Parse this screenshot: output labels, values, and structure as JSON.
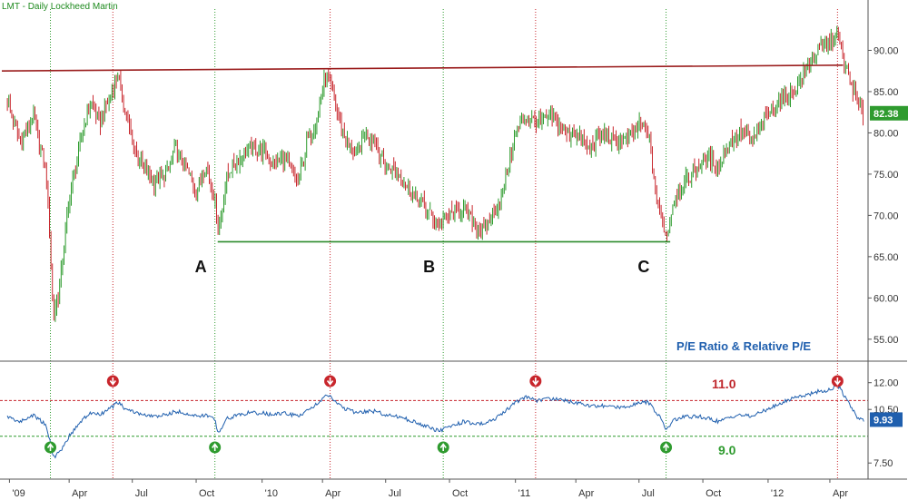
{
  "chart_data": [
    {
      "type": "line",
      "title": "LMT - Daily  Lockheed Martin",
      "x": [
        "2009-01-02",
        "2009-01-20",
        "2009-02-09",
        "2009-02-27",
        "2009-03-05",
        "2009-03-09",
        "2009-03-18",
        "2009-04-01",
        "2009-04-15",
        "2009-05-01",
        "2009-05-15",
        "2009-06-01",
        "2009-06-10",
        "2009-06-22",
        "2009-07-01",
        "2009-07-15",
        "2009-08-01",
        "2009-08-20",
        "2009-09-01",
        "2009-09-15",
        "2009-10-01",
        "2009-10-15",
        "2009-10-28",
        "2009-11-02",
        "2009-11-15",
        "2009-12-01",
        "2009-12-15",
        "2010-01-04",
        "2010-01-20",
        "2010-02-05",
        "2010-02-25",
        "2010-03-10",
        "2010-03-25",
        "2010-04-05",
        "2010-04-12",
        "2010-04-20",
        "2010-05-05",
        "2010-05-20",
        "2010-06-01",
        "2010-06-15",
        "2010-07-01",
        "2010-07-20",
        "2010-08-05",
        "2010-08-25",
        "2010-09-15",
        "2010-10-01",
        "2010-10-20",
        "2010-11-05",
        "2010-11-20",
        "2010-12-01",
        "2010-12-15",
        "2011-01-04",
        "2011-01-20",
        "2011-02-05",
        "2011-02-25",
        "2011-03-15",
        "2011-04-01",
        "2011-04-20",
        "2011-05-10",
        "2011-05-25",
        "2011-06-15",
        "2011-07-01",
        "2011-07-15",
        "2011-07-26",
        "2011-08-05",
        "2011-08-09",
        "2011-08-20",
        "2011-09-05",
        "2011-09-25",
        "2011-10-10",
        "2011-10-25",
        "2011-11-10",
        "2011-11-25",
        "2011-12-10",
        "2012-01-01",
        "2012-01-20",
        "2012-02-10",
        "2012-02-28",
        "2012-03-15",
        "2012-04-01",
        "2012-04-12",
        "2012-04-20",
        "2012-05-01",
        "2012-05-10",
        "2012-05-20"
      ],
      "y": [
        84,
        79,
        82,
        75,
        66,
        58,
        61,
        72,
        78,
        84,
        81,
        85,
        87,
        82,
        79,
        76,
        74,
        75,
        78,
        76,
        73,
        76,
        72,
        68,
        75,
        77,
        78,
        78,
        76,
        77,
        74,
        79,
        82,
        87,
        86,
        83,
        79,
        77,
        80,
        79,
        76,
        75,
        73,
        71,
        69,
        70,
        71,
        69,
        68,
        70,
        72,
        80,
        82,
        81,
        82,
        80,
        80,
        78,
        80,
        79,
        79,
        81,
        80,
        72,
        69,
        67,
        72,
        74,
        76,
        77,
        76,
        79,
        80,
        79,
        82,
        84,
        85,
        88,
        90,
        91,
        92,
        89,
        86,
        84,
        82
      ],
      "ylim": [
        53,
        95
      ],
      "yticks": [
        "55.00",
        "60.00",
        "65.00",
        "70.00",
        "75.00",
        "80.00",
        "85.00",
        "90.00"
      ],
      "last_value": "82.38",
      "resistance": {
        "start": {
          "x": "2008-12-25",
          "y": 87.5
        },
        "end": {
          "x": "2012-04-20",
          "y": 88.2
        }
      },
      "support": {
        "start": {
          "x": "2009-11-01",
          "y": 66.8
        },
        "end": {
          "x": "2011-08-15",
          "y": 66.8
        }
      },
      "points": [
        {
          "label": "A",
          "x": "2009-10-28"
        },
        {
          "label": "B",
          "x": "2010-09-22"
        },
        {
          "label": "C",
          "x": "2011-07-28"
        }
      ]
    },
    {
      "type": "line",
      "title": "P/E Ratio  & Relative P/E",
      "x": [
        "2009-01-02",
        "2009-01-20",
        "2009-02-09",
        "2009-02-27",
        "2009-03-05",
        "2009-03-09",
        "2009-03-18",
        "2009-04-01",
        "2009-04-15",
        "2009-05-01",
        "2009-05-15",
        "2009-06-01",
        "2009-06-10",
        "2009-06-22",
        "2009-07-01",
        "2009-07-15",
        "2009-08-01",
        "2009-08-20",
        "2009-09-01",
        "2009-09-15",
        "2009-10-01",
        "2009-10-15",
        "2009-10-28",
        "2009-11-02",
        "2009-11-15",
        "2009-12-01",
        "2009-12-15",
        "2010-01-04",
        "2010-01-20",
        "2010-02-05",
        "2010-02-25",
        "2010-03-10",
        "2010-03-25",
        "2010-04-05",
        "2010-04-12",
        "2010-04-20",
        "2010-05-05",
        "2010-05-20",
        "2010-06-01",
        "2010-06-15",
        "2010-07-01",
        "2010-07-20",
        "2010-08-05",
        "2010-08-25",
        "2010-09-15",
        "2010-10-01",
        "2010-10-20",
        "2010-11-05",
        "2010-11-20",
        "2010-12-01",
        "2010-12-15",
        "2011-01-04",
        "2011-01-20",
        "2011-02-05",
        "2011-02-25",
        "2011-03-15",
        "2011-04-01",
        "2011-04-20",
        "2011-05-10",
        "2011-05-25",
        "2011-06-15",
        "2011-07-01",
        "2011-07-15",
        "2011-07-26",
        "2011-08-05",
        "2011-08-09",
        "2011-08-20",
        "2011-09-05",
        "2011-09-25",
        "2011-10-10",
        "2011-10-25",
        "2011-11-10",
        "2011-11-25",
        "2011-12-10",
        "2012-01-01",
        "2012-01-20",
        "2012-02-10",
        "2012-02-28",
        "2012-03-15",
        "2012-04-01",
        "2012-04-12",
        "2012-04-20",
        "2012-05-01",
        "2012-05-10",
        "2012-05-20"
      ],
      "y": [
        10.1,
        9.8,
        10.2,
        9.6,
        8.7,
        7.8,
        8.1,
        9.0,
        9.7,
        10.3,
        10.2,
        10.6,
        10.9,
        10.5,
        10.4,
        10.2,
        10.1,
        10.2,
        10.4,
        10.3,
        10.1,
        10.2,
        9.9,
        9.2,
        10.0,
        10.2,
        10.3,
        10.3,
        10.2,
        10.3,
        10.1,
        10.5,
        10.8,
        11.3,
        11.2,
        10.9,
        10.5,
        10.3,
        10.4,
        10.4,
        10.2,
        10.1,
        9.9,
        9.6,
        9.3,
        9.5,
        9.8,
        9.7,
        9.7,
        9.9,
        10.2,
        10.9,
        11.2,
        11.0,
        11.1,
        11.0,
        10.9,
        10.7,
        10.7,
        10.6,
        10.7,
        10.9,
        10.9,
        10.3,
        9.8,
        9.3,
        9.9,
        10.1,
        10.1,
        10.0,
        9.8,
        10.1,
        10.2,
        10.1,
        10.5,
        10.8,
        11.2,
        11.3,
        11.5,
        11.6,
        11.9,
        11.4,
        10.7,
        10.1,
        9.93
      ],
      "ylim": [
        6.8,
        12.9
      ],
      "yticks": [
        "7.50",
        "10.50",
        "12.00"
      ],
      "last_value": "9.93",
      "upper_level": {
        "value": 11.0,
        "label": "11.0"
      },
      "lower_level": {
        "value": 9.0,
        "label": "9.0"
      },
      "sell_signals": [
        "2009-06-03",
        "2010-04-12",
        "2011-02-02",
        "2012-04-12"
      ],
      "buy_signals": [
        "2009-03-05",
        "2009-10-28",
        "2010-09-22",
        "2011-08-09"
      ]
    }
  ],
  "x_axis": {
    "labels": [
      {
        "text": "'09",
        "date": "2009-01-05"
      },
      {
        "text": "Apr",
        "date": "2009-04-01"
      },
      {
        "text": "Jul",
        "date": "2009-07-01"
      },
      {
        "text": "Oct",
        "date": "2009-10-01"
      },
      {
        "text": "'10",
        "date": "2010-01-04"
      },
      {
        "text": "Apr",
        "date": "2010-04-01"
      },
      {
        "text": "Jul",
        "date": "2010-07-01"
      },
      {
        "text": "Oct",
        "date": "2010-10-01"
      },
      {
        "text": "'11",
        "date": "2011-01-04"
      },
      {
        "text": "Apr",
        "date": "2011-04-01"
      },
      {
        "text": "Jul",
        "date": "2011-07-01"
      },
      {
        "text": "Oct",
        "date": "2011-10-01"
      },
      {
        "text": "'12",
        "date": "2012-01-03"
      },
      {
        "text": "Apr",
        "date": "2012-04-01"
      }
    ]
  },
  "colors": {
    "up_bar": "#2b9a2b",
    "down_bar": "#c8262c",
    "resistance": "#9a1c1c",
    "support": "#2a8a2a",
    "pe_line": "#1f5fae",
    "sell": "#c8262c",
    "buy": "#2f9b2f",
    "last_price_badge": "#2f9b2f",
    "last_pe_badge": "#1f5fae"
  }
}
